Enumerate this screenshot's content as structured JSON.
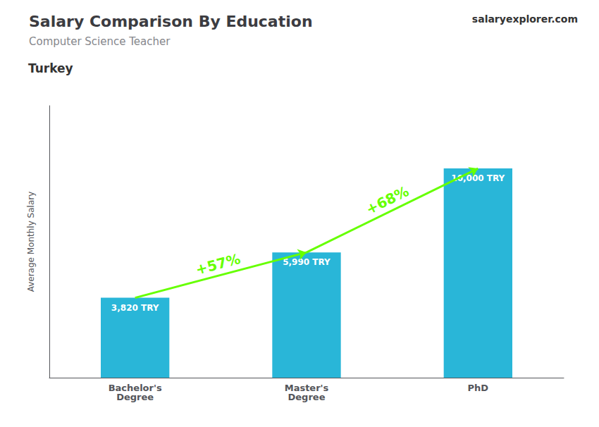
{
  "chart_data": {
    "type": "bar",
    "title": "Salary Comparison By Education",
    "subtitle": "Computer Science Teacher",
    "annotations": [
      "Turkey",
      "salaryexplorer.com"
    ],
    "y_label": "Average Monthly Salary",
    "categories": [
      "Bachelor's\nDegree",
      "Master's\nDegree",
      "PhD"
    ],
    "values": [
      3820,
      5990,
      10000
    ],
    "value_labels": [
      "3,820 TRY",
      "5,990 TRY",
      "10,000 TRY"
    ],
    "data_labels": true,
    "color": "#29b6d8",
    "arrows": [
      {
        "label": "+57%",
        "from": "Bachelor's\nDegree",
        "to": "Master's\nDegree",
        "color": "#66ff00"
      },
      {
        "label": "+68%",
        "from": "Master's\nDegree",
        "to": "PhD",
        "color": "#66ff00"
      }
    ],
    "ylim": [
      0,
      13000
    ],
    "tick_labels": "x",
    "grid": false
  }
}
